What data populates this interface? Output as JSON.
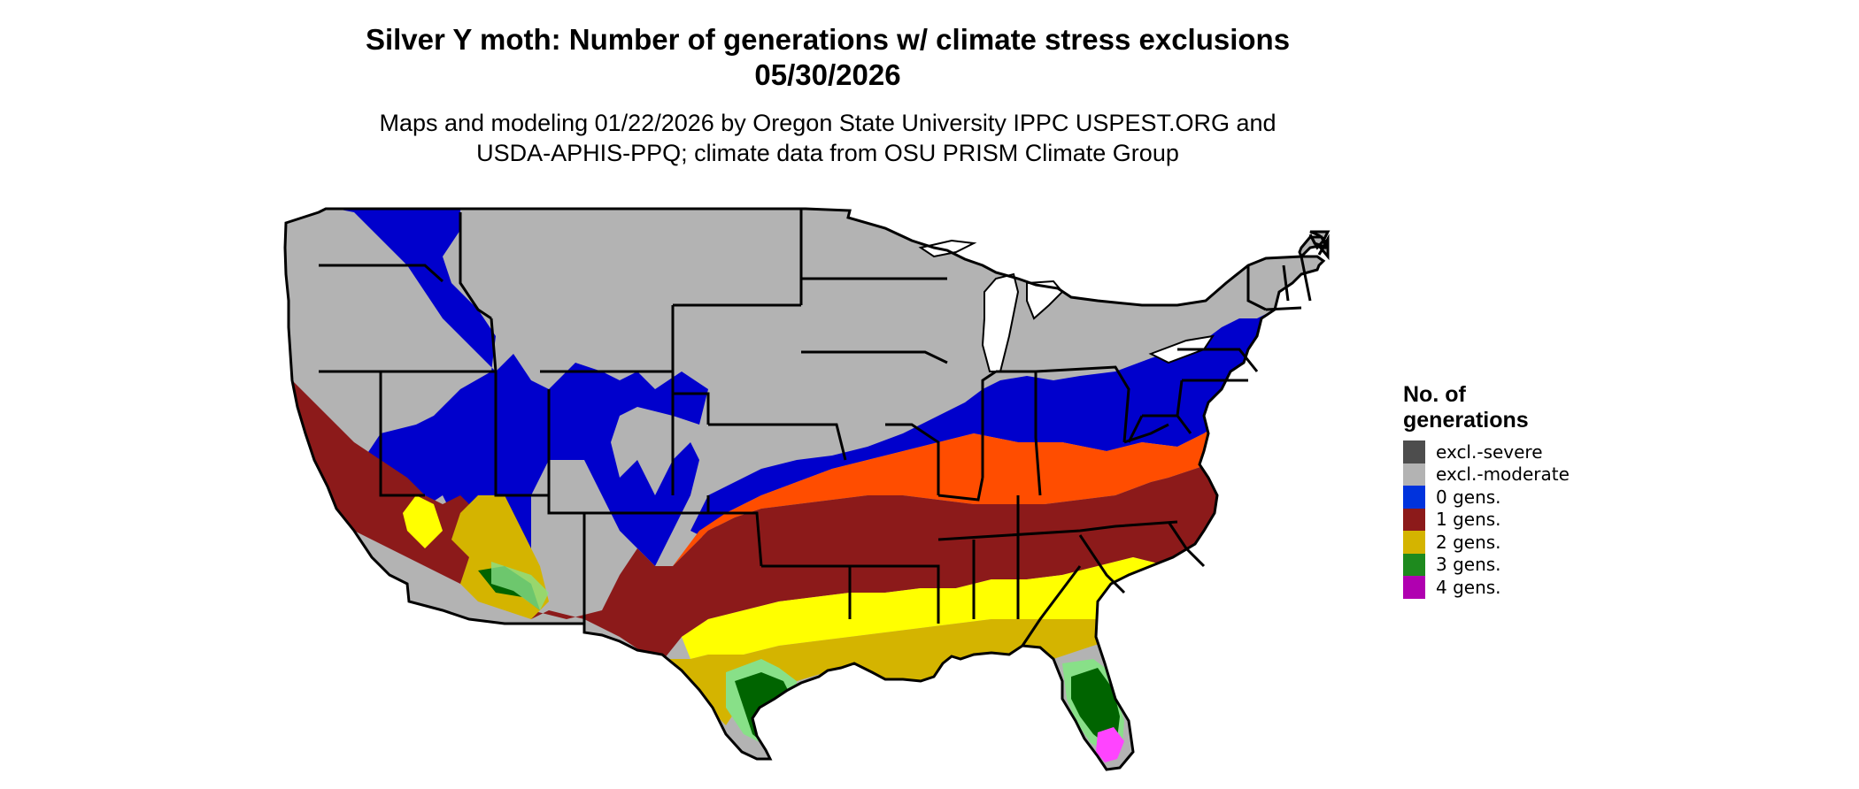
{
  "header": {
    "title_line1": "Silver Y moth: Number of generations w/ climate stress exclusions",
    "title_line2": "05/30/2026",
    "subtitle_line1": "Maps and modeling 01/22/2026 by Oregon State University IPPC USPEST.ORG and",
    "subtitle_line2": "USDA-APHIS-PPQ; climate data from OSU PRISM Climate Group"
  },
  "legend": {
    "title_line1": "No. of",
    "title_line2": "generations",
    "items": [
      {
        "label": "excl.-severe",
        "color": "#4d4d4d"
      },
      {
        "label": "excl.-moderate",
        "color": "#b3b3b3"
      },
      {
        "label": "0 gens.",
        "color": "#0033dd"
      },
      {
        "label": "1 gens.",
        "color": "#8c1a1a"
      },
      {
        "label": "2 gens.",
        "color": "#d4b400"
      },
      {
        "label": "3 gens.",
        "color": "#1e8a1e"
      },
      {
        "label": "4 gens.",
        "color": "#b000b0"
      }
    ]
  },
  "map_colors": {
    "excl_moderate": "#b3b3b3",
    "zero_gens": "#0000cc",
    "one_gens": "#8c1a1a",
    "one_gens_light": "#ff4d00",
    "two_gens": "#d4b400",
    "two_gens_light": "#ffff00",
    "three_gens": "#006400",
    "three_gens_light": "#88e088",
    "four_gens": "#ff44ff",
    "borders": "#000000"
  }
}
